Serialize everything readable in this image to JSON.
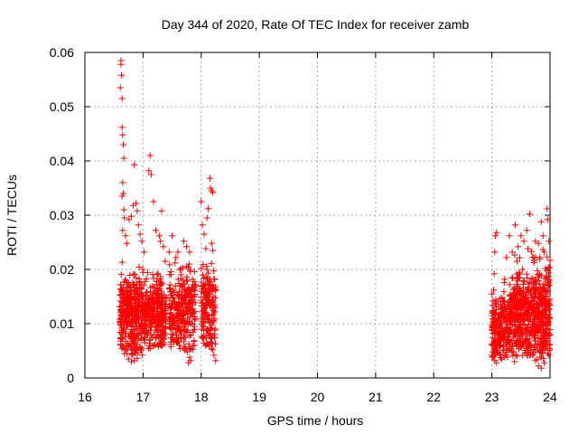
{
  "chart_data": {
    "type": "scatter",
    "title": "Day 344 of 2020, Rate Of TEC Index for receiver zamb",
    "xlabel": "GPS time / hours",
    "ylabel": "ROTI / TECUs",
    "xlim": [
      16,
      24
    ],
    "ylim": [
      0,
      0.06
    ],
    "x_ticks": [
      16,
      17,
      18,
      19,
      20,
      21,
      22,
      23,
      24
    ],
    "x_tick_labels": [
      "16",
      "17",
      "18",
      "19",
      "20",
      "21",
      "22",
      "23",
      "24"
    ],
    "y_ticks": [
      0,
      0.01,
      0.02,
      0.03,
      0.04,
      0.05,
      0.06
    ],
    "y_tick_labels": [
      "0",
      "0.01",
      "0.02",
      "0.03",
      "0.04",
      "0.05",
      "0.06"
    ],
    "grid": true,
    "marker": "+",
    "color": "#ff0000",
    "series": [
      {
        "name": "ROTI",
        "points": [
          [
            16.62,
            0.0585
          ],
          [
            16.62,
            0.0578
          ],
          [
            16.63,
            0.0558
          ],
          [
            16.61,
            0.0535
          ],
          [
            16.64,
            0.0515
          ],
          [
            16.64,
            0.0462
          ],
          [
            16.65,
            0.0448
          ],
          [
            16.66,
            0.043
          ],
          [
            16.67,
            0.0405
          ],
          [
            16.65,
            0.036
          ],
          [
            16.66,
            0.034
          ],
          [
            16.64,
            0.0335
          ],
          [
            16.67,
            0.031
          ],
          [
            16.68,
            0.0295
          ],
          [
            16.65,
            0.0272
          ],
          [
            16.7,
            0.0262
          ],
          [
            16.72,
            0.0248
          ],
          [
            16.62,
            0.0172
          ],
          [
            16.63,
            0.0162
          ],
          [
            16.6,
            0.0108
          ],
          [
            16.61,
            0.0098
          ],
          [
            16.63,
            0.0082
          ],
          [
            16.62,
            0.0068
          ],
          [
            16.65,
            0.006
          ],
          [
            16.68,
            0.0052
          ],
          [
            16.72,
            0.0045
          ],
          [
            16.75,
            0.0035
          ],
          [
            16.8,
            0.003
          ],
          [
            16.85,
            0.0032
          ],
          [
            16.9,
            0.0036
          ],
          [
            16.76,
            0.0292
          ],
          [
            16.8,
            0.0298
          ],
          [
            16.83,
            0.0318
          ],
          [
            16.85,
            0.0393
          ],
          [
            16.88,
            0.0322
          ],
          [
            16.9,
            0.0308
          ],
          [
            16.92,
            0.0282
          ],
          [
            16.95,
            0.0265
          ],
          [
            16.98,
            0.0252
          ],
          [
            17.02,
            0.0232
          ],
          [
            17.1,
            0.0382
          ],
          [
            17.12,
            0.041
          ],
          [
            17.14,
            0.0375
          ],
          [
            17.18,
            0.0325
          ],
          [
            17.22,
            0.0272
          ],
          [
            17.28,
            0.0262
          ],
          [
            17.32,
            0.0308
          ],
          [
            17.3,
            0.0252
          ],
          [
            17.35,
            0.0242
          ],
          [
            17.38,
            0.0215
          ],
          [
            17.45,
            0.0232
          ],
          [
            17.5,
            0.0262
          ],
          [
            17.55,
            0.0212
          ],
          [
            17.6,
            0.0232
          ],
          [
            17.65,
            0.0202
          ],
          [
            17.7,
            0.0252
          ],
          [
            17.75,
            0.0242
          ],
          [
            17.8,
            0.0232
          ],
          [
            17.85,
            0.0182
          ],
          [
            17.9,
            0.0172
          ],
          [
            17.72,
            0.0058
          ],
          [
            17.76,
            0.0048
          ],
          [
            17.8,
            0.0038
          ],
          [
            17.82,
            0.0032
          ],
          [
            17.78,
            0.0028
          ],
          [
            18.0,
            0.0325
          ],
          [
            18.02,
            0.0282
          ],
          [
            18.05,
            0.0265
          ],
          [
            18.1,
            0.0295
          ],
          [
            18.12,
            0.0312
          ],
          [
            18.15,
            0.0368
          ],
          [
            18.16,
            0.035
          ],
          [
            18.18,
            0.0345
          ],
          [
            18.2,
            0.0342
          ],
          [
            18.18,
            0.0248
          ],
          [
            18.2,
            0.0235
          ],
          [
            18.22,
            0.0182
          ],
          [
            18.25,
            0.0168
          ],
          [
            18.22,
            0.0122
          ],
          [
            18.18,
            0.0098
          ],
          [
            18.15,
            0.0082
          ],
          [
            18.12,
            0.0062
          ],
          [
            18.2,
            0.0052
          ],
          [
            18.22,
            0.0042
          ],
          [
            18.25,
            0.0032
          ],
          [
            23.0,
            0.0042
          ],
          [
            23.0,
            0.0062
          ],
          [
            23.01,
            0.0082
          ],
          [
            23.02,
            0.0102
          ],
          [
            23.02,
            0.0142
          ],
          [
            23.03,
            0.0162
          ],
          [
            23.04,
            0.0192
          ],
          [
            23.05,
            0.0232
          ],
          [
            23.06,
            0.0262
          ],
          [
            23.08,
            0.0268
          ],
          [
            23.05,
            0.0032
          ],
          [
            23.08,
            0.0028
          ],
          [
            23.1,
            0.0048
          ],
          [
            23.12,
            0.0072
          ],
          [
            23.15,
            0.0102
          ],
          [
            23.2,
            0.0142
          ],
          [
            23.22,
            0.0182
          ],
          [
            23.25,
            0.0222
          ],
          [
            23.3,
            0.0262
          ],
          [
            23.35,
            0.0232
          ],
          [
            23.4,
            0.0282
          ],
          [
            23.45,
            0.0242
          ],
          [
            23.5,
            0.0262
          ],
          [
            23.55,
            0.0252
          ],
          [
            23.6,
            0.0272
          ],
          [
            23.62,
            0.0238
          ],
          [
            23.65,
            0.0302
          ],
          [
            23.7,
            0.0222
          ],
          [
            23.75,
            0.0252
          ],
          [
            23.8,
            0.0248
          ],
          [
            23.85,
            0.0288
          ],
          [
            23.88,
            0.0262
          ],
          [
            23.9,
            0.0232
          ],
          [
            23.92,
            0.0202
          ],
          [
            23.95,
            0.0312
          ],
          [
            23.96,
            0.0292
          ],
          [
            23.98,
            0.0252
          ],
          [
            23.96,
            0.0172
          ],
          [
            23.98,
            0.0142
          ],
          [
            23.99,
            0.0112
          ],
          [
            23.7,
            0.0042
          ],
          [
            23.75,
            0.0032
          ],
          [
            23.8,
            0.0022
          ],
          [
            23.85,
            0.0018
          ],
          [
            23.9,
            0.0028
          ],
          [
            23.92,
            0.0052
          ],
          [
            23.95,
            0.0062
          ],
          [
            23.98,
            0.0042
          ],
          [
            23.99,
            0.0082
          ],
          [
            23.97,
            0.0102
          ]
        ],
        "dense_bands": [
          {
            "x_start": 16.6,
            "x_end": 17.0,
            "y_min": 0.003,
            "y_max": 0.024,
            "count": 360,
            "center": 0.01
          },
          {
            "x_start": 17.0,
            "x_end": 17.4,
            "y_min": 0.003,
            "y_max": 0.022,
            "count": 300,
            "center": 0.011
          },
          {
            "x_start": 17.45,
            "x_end": 17.9,
            "y_min": 0.003,
            "y_max": 0.024,
            "count": 300,
            "center": 0.011
          },
          {
            "x_start": 18.0,
            "x_end": 18.25,
            "y_min": 0.003,
            "y_max": 0.026,
            "count": 170,
            "center": 0.012
          },
          {
            "x_start": 23.0,
            "x_end": 23.3,
            "y_min": 0.002,
            "y_max": 0.018,
            "count": 220,
            "center": 0.008
          },
          {
            "x_start": 23.3,
            "x_end": 23.7,
            "y_min": 0.002,
            "y_max": 0.024,
            "count": 360,
            "center": 0.01
          },
          {
            "x_start": 23.7,
            "x_end": 24.0,
            "y_min": 0.002,
            "y_max": 0.026,
            "count": 300,
            "center": 0.01
          }
        ]
      }
    ]
  }
}
